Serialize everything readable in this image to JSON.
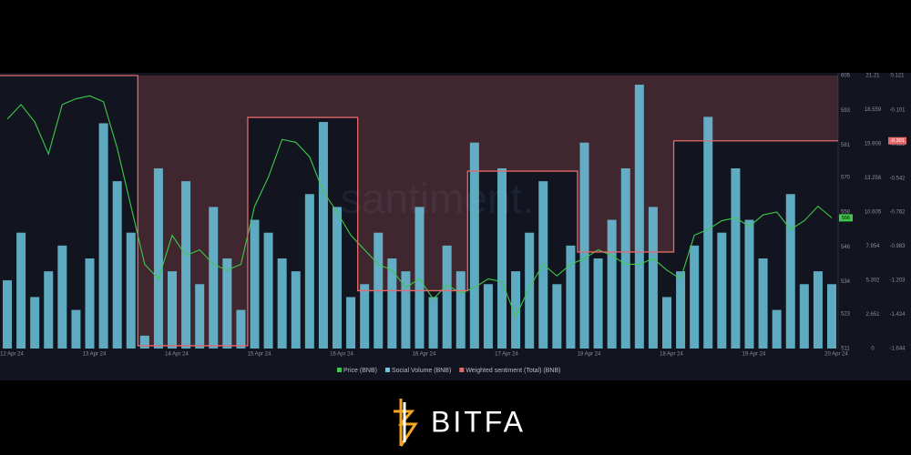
{
  "chart_data": {
    "type": "combo",
    "watermark": "santiment.",
    "categories": [
      "12 Apr 24",
      null,
      null,
      null,
      null,
      null,
      "13 Apr 24",
      null,
      null,
      null,
      null,
      null,
      "14 Apr 24",
      null,
      null,
      null,
      null,
      null,
      "15 Apr 24",
      null,
      null,
      null,
      null,
      null,
      "16 Apr 24",
      null,
      null,
      null,
      null,
      null,
      "16 Apr 24",
      null,
      null,
      null,
      null,
      null,
      "17 Apr 24",
      null,
      null,
      null,
      null,
      null,
      "18 Apr 24",
      null,
      null,
      null,
      null,
      null,
      "18 Apr 24",
      null,
      null,
      null,
      null,
      null,
      "19 Apr 24",
      null,
      null,
      null,
      null,
      null,
      "20 Apr 24"
    ],
    "series": [
      {
        "name": "Price (BNB)",
        "type": "line",
        "axis": "y2",
        "color": "#3ec94a",
        "values": [
          590,
          595,
          589,
          578,
          595,
          597,
          598,
          596,
          580,
          560,
          540,
          535,
          550,
          543,
          545,
          540,
          538,
          540,
          560,
          570,
          583,
          582,
          577,
          565,
          558,
          550,
          545,
          540,
          538,
          532,
          535,
          528,
          533,
          530,
          532,
          535,
          534,
          522,
          532,
          540,
          536,
          540,
          542,
          545,
          543,
          540,
          540,
          542,
          538,
          535,
          550,
          552,
          555,
          556,
          553,
          557,
          558,
          552,
          555,
          560,
          556
        ]
      },
      {
        "name": "Social Volume (BNB)",
        "type": "bar",
        "axis": "y",
        "color": "#6cc6de",
        "values": [
          5.3,
          9,
          4,
          6,
          8,
          3,
          7,
          17.5,
          13,
          9,
          1,
          14,
          6,
          13,
          5,
          11,
          7,
          3,
          10,
          9,
          7,
          6,
          12,
          17.6,
          11,
          4,
          5,
          9,
          7,
          6,
          11,
          4,
          8,
          6,
          16,
          5,
          14,
          6,
          9,
          13,
          5,
          8,
          16,
          7,
          10,
          14,
          20.5,
          11,
          4,
          6,
          8,
          18,
          9,
          14,
          10,
          7,
          3,
          12,
          5,
          6,
          5
        ]
      },
      {
        "name": "Weighted sentiment (Total) (BNB)",
        "type": "step",
        "axis": "y3",
        "color": "#e26a6a",
        "values": [
          0.121,
          0.121,
          0.121,
          0.121,
          0.121,
          0.121,
          0.121,
          0.121,
          0.121,
          0.121,
          -1.626,
          -1.626,
          -1.626,
          -1.626,
          -1.626,
          -1.626,
          -1.626,
          -1.626,
          -0.15,
          -0.15,
          -0.15,
          -0.15,
          -0.15,
          -0.15,
          -0.15,
          -0.15,
          -1.27,
          -1.27,
          -1.27,
          -1.27,
          -1.27,
          -1.27,
          -1.27,
          -1.27,
          -0.497,
          -0.497,
          -0.497,
          -0.497,
          -0.497,
          -0.497,
          -0.497,
          -0.497,
          -1.02,
          -1.02,
          -1.02,
          -1.02,
          -1.02,
          -1.02,
          -1.02,
          -0.301,
          -0.301,
          -0.301,
          -0.301,
          -0.301,
          -0.301,
          -0.301,
          -0.301,
          -0.301,
          -0.301,
          -0.301,
          -0.301
        ]
      }
    ],
    "ylim": [
      0,
      21.21
    ],
    "yticks": [
      0,
      2.651,
      5.302,
      7.954,
      10.605,
      13.256,
      15.908,
      18.559,
      21.21
    ],
    "y2lim": [
      511,
      605
    ],
    "y2ticks": [
      511,
      523,
      534,
      546,
      558,
      570,
      581,
      593,
      605
    ],
    "y3lim": [
      -1.644,
      0.121
    ],
    "y3ticks": [
      -1.644,
      -1.424,
      -1.203,
      -0.983,
      -0.762,
      -0.542,
      -0.322,
      -0.101,
      0.121
    ],
    "brand": "BITFA"
  }
}
